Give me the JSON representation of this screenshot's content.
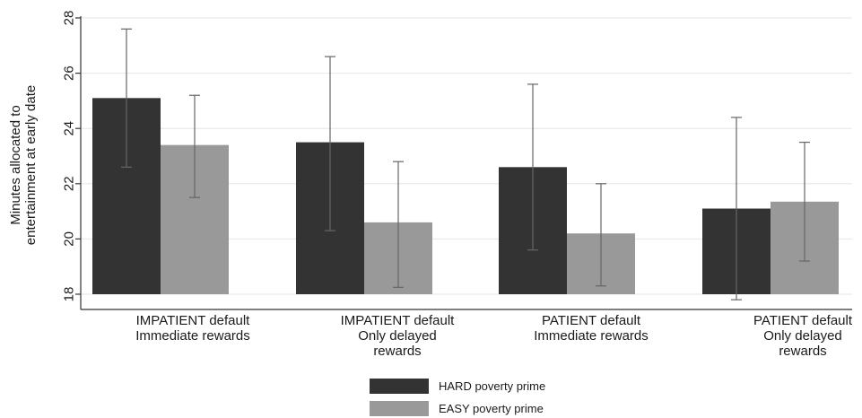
{
  "chart_data": {
    "type": "bar",
    "ylabel_lines": [
      "Minutes allocated to",
      "entertainment at early date"
    ],
    "ylim": [
      18,
      28
    ],
    "yticks": [
      18,
      20,
      22,
      24,
      26,
      28
    ],
    "grid": true,
    "legend_position": "bottom-center",
    "categories": [
      [
        "IMPATIENT default",
        "Immediate rewards"
      ],
      [
        "IMPATIENT default",
        "Only delayed",
        "rewards"
      ],
      [
        "PATIENT default",
        "Immediate rewards"
      ],
      [
        "PATIENT default",
        "Only delayed",
        "rewards"
      ]
    ],
    "series": [
      {
        "name": "HARD poverty prime",
        "color": "#333333",
        "values": [
          25.1,
          23.5,
          22.6,
          21.1
        ],
        "err_low": [
          22.6,
          20.3,
          19.6,
          17.8
        ],
        "err_high": [
          27.6,
          26.6,
          25.6,
          24.4
        ]
      },
      {
        "name": "EASY poverty prime",
        "color": "#999999",
        "values": [
          23.4,
          20.6,
          20.2,
          21.35
        ],
        "err_low": [
          21.5,
          18.25,
          18.3,
          19.2
        ],
        "err_high": [
          25.2,
          22.8,
          22.0,
          23.5
        ]
      }
    ]
  }
}
